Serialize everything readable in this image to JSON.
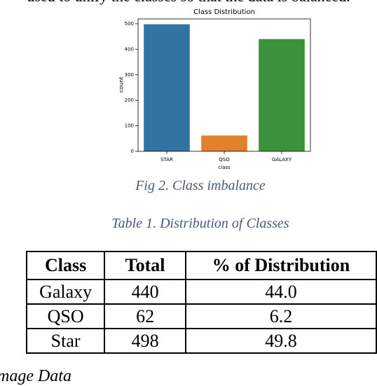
{
  "header": {
    "text": "used to unify the classes so that the data is balanced."
  },
  "chart_data": {
    "type": "bar",
    "title": "Class Distribution",
    "categories": [
      "STAR",
      "QSO",
      "GALAXY"
    ],
    "values": [
      498,
      62,
      440
    ],
    "colors": [
      "#3274a1",
      "#e1812c",
      "#3a923a"
    ],
    "xlabel": "class",
    "ylabel": "count",
    "ylim": [
      0,
      519
    ],
    "yticks": [
      0,
      100,
      200,
      300,
      400,
      500
    ]
  },
  "figure_caption": "Fig 2. Class imbalance",
  "table_caption": "Table 1. Distribution of Classes",
  "table": {
    "header": [
      "Class",
      "Total",
      "% of Distribution"
    ],
    "rows": [
      [
        "Galaxy",
        "440",
        "44.0"
      ],
      [
        "QSO",
        "62",
        "6.2"
      ],
      [
        "Star",
        "498",
        "49.8"
      ]
    ]
  },
  "footer": {
    "text": "Image Data"
  }
}
